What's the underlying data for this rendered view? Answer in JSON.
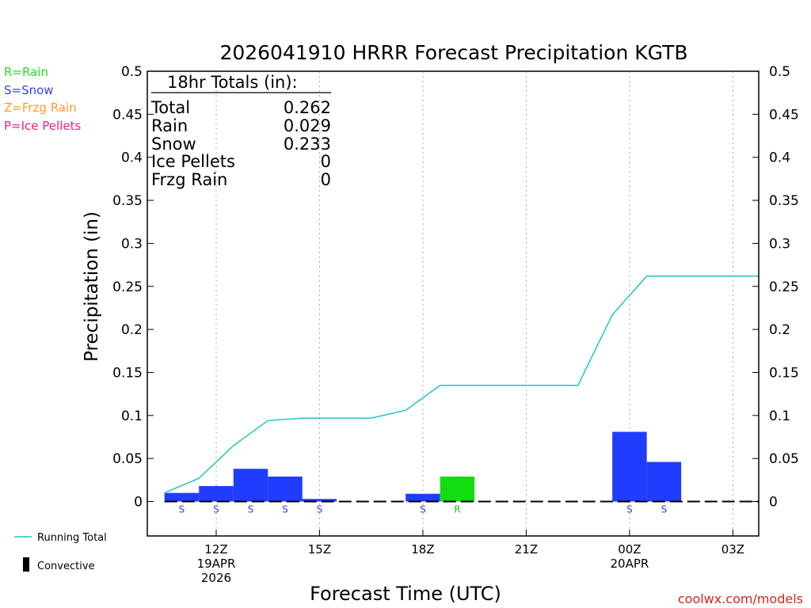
{
  "chart_data": {
    "type": "bar",
    "title": "2026041910 HRRR Forecast Precipitation KGTB",
    "xlabel": "Forecast Time (UTC)",
    "ylabel": "Precipitation (in)",
    "ylim": [
      -0.04,
      0.5
    ],
    "xlim": [
      10,
      27.75
    ],
    "yticks": [
      0,
      0.05,
      0.1,
      0.15,
      0.2,
      0.25,
      0.3,
      0.35,
      0.4,
      0.45,
      0.5
    ],
    "ytick_labels": [
      "0",
      "0.05",
      "0.1",
      "0.15",
      "0.2",
      "0.25",
      "0.3",
      "0.35",
      "0.4",
      "0.45",
      "0.5"
    ],
    "xticks": [
      {
        "hour": 12,
        "lines": [
          "12Z",
          "19APR",
          "2026"
        ]
      },
      {
        "hour": 15,
        "lines": [
          "15Z"
        ]
      },
      {
        "hour": 18,
        "lines": [
          "18Z"
        ]
      },
      {
        "hour": 21,
        "lines": [
          "21Z"
        ]
      },
      {
        "hour": 24,
        "lines": [
          "00Z",
          "20APR"
        ]
      },
      {
        "hour": 27,
        "lines": [
          "03Z"
        ]
      }
    ],
    "bars": [
      {
        "hour": 11,
        "value": 0.01,
        "ptype": "S"
      },
      {
        "hour": 12,
        "value": 0.018,
        "ptype": "S"
      },
      {
        "hour": 13,
        "value": 0.038,
        "ptype": "S"
      },
      {
        "hour": 14,
        "value": 0.029,
        "ptype": "S"
      },
      {
        "hour": 15,
        "value": 0.003,
        "ptype": "S"
      },
      {
        "hour": 16,
        "value": 0,
        "ptype": ""
      },
      {
        "hour": 17,
        "value": 0,
        "ptype": ""
      },
      {
        "hour": 18,
        "value": 0.009,
        "ptype": "S"
      },
      {
        "hour": 19,
        "value": 0.029,
        "ptype": "R"
      },
      {
        "hour": 20,
        "value": 0,
        "ptype": ""
      },
      {
        "hour": 21,
        "value": 0,
        "ptype": ""
      },
      {
        "hour": 22,
        "value": 0,
        "ptype": ""
      },
      {
        "hour": 23,
        "value": 0,
        "ptype": ""
      },
      {
        "hour": 24,
        "value": 0.081,
        "ptype": "S"
      },
      {
        "hour": 25,
        "value": 0.046,
        "ptype": "S"
      },
      {
        "hour": 26,
        "value": 0,
        "ptype": ""
      },
      {
        "hour": 27,
        "value": 0,
        "ptype": ""
      }
    ],
    "running_total": {
      "name": "Running Total",
      "x": [
        10.5,
        11.5,
        12.5,
        13.5,
        14.5,
        15.5,
        16.5,
        17.5,
        18.5,
        19.5,
        20.5,
        21.5,
        22.5,
        23.5,
        24.5,
        25.5,
        26.5,
        27.5,
        27.75
      ],
      "y": [
        0.01,
        0.027,
        0.065,
        0.094,
        0.097,
        0.097,
        0.097,
        0.106,
        0.135,
        0.135,
        0.135,
        0.135,
        0.135,
        0.217,
        0.262,
        0.262,
        0.262,
        0.262,
        0.262
      ]
    },
    "totals_box": {
      "heading": "18hr Totals (in):",
      "rows": [
        {
          "label": "Total",
          "value": "0.262"
        },
        {
          "label": "Rain",
          "value": "0.029"
        },
        {
          "label": "Snow",
          "value": "0.233"
        },
        {
          "label": "Ice Pellets",
          "value": "0"
        },
        {
          "label": "Frzg Rain",
          "value": "0"
        }
      ]
    },
    "ptype_legend": [
      {
        "text": "R=Rain",
        "color": "#22dd22"
      },
      {
        "text": "S=Snow",
        "color": "#3344ee"
      },
      {
        "text": "Z=Frzg Rain",
        "color": "#ff9933"
      },
      {
        "text": "P=Ice Pellets",
        "color": "#ee2288"
      }
    ],
    "line_legend": {
      "running_total": "Running Total",
      "convective": "Convective"
    },
    "colors": {
      "snow": "#1f3cff",
      "rain": "#11dd11",
      "running_total": "#22c4c4",
      "snow_label": "#3344ee",
      "rain_label": "#22bb22"
    },
    "credit": "coolwx.com/models"
  }
}
